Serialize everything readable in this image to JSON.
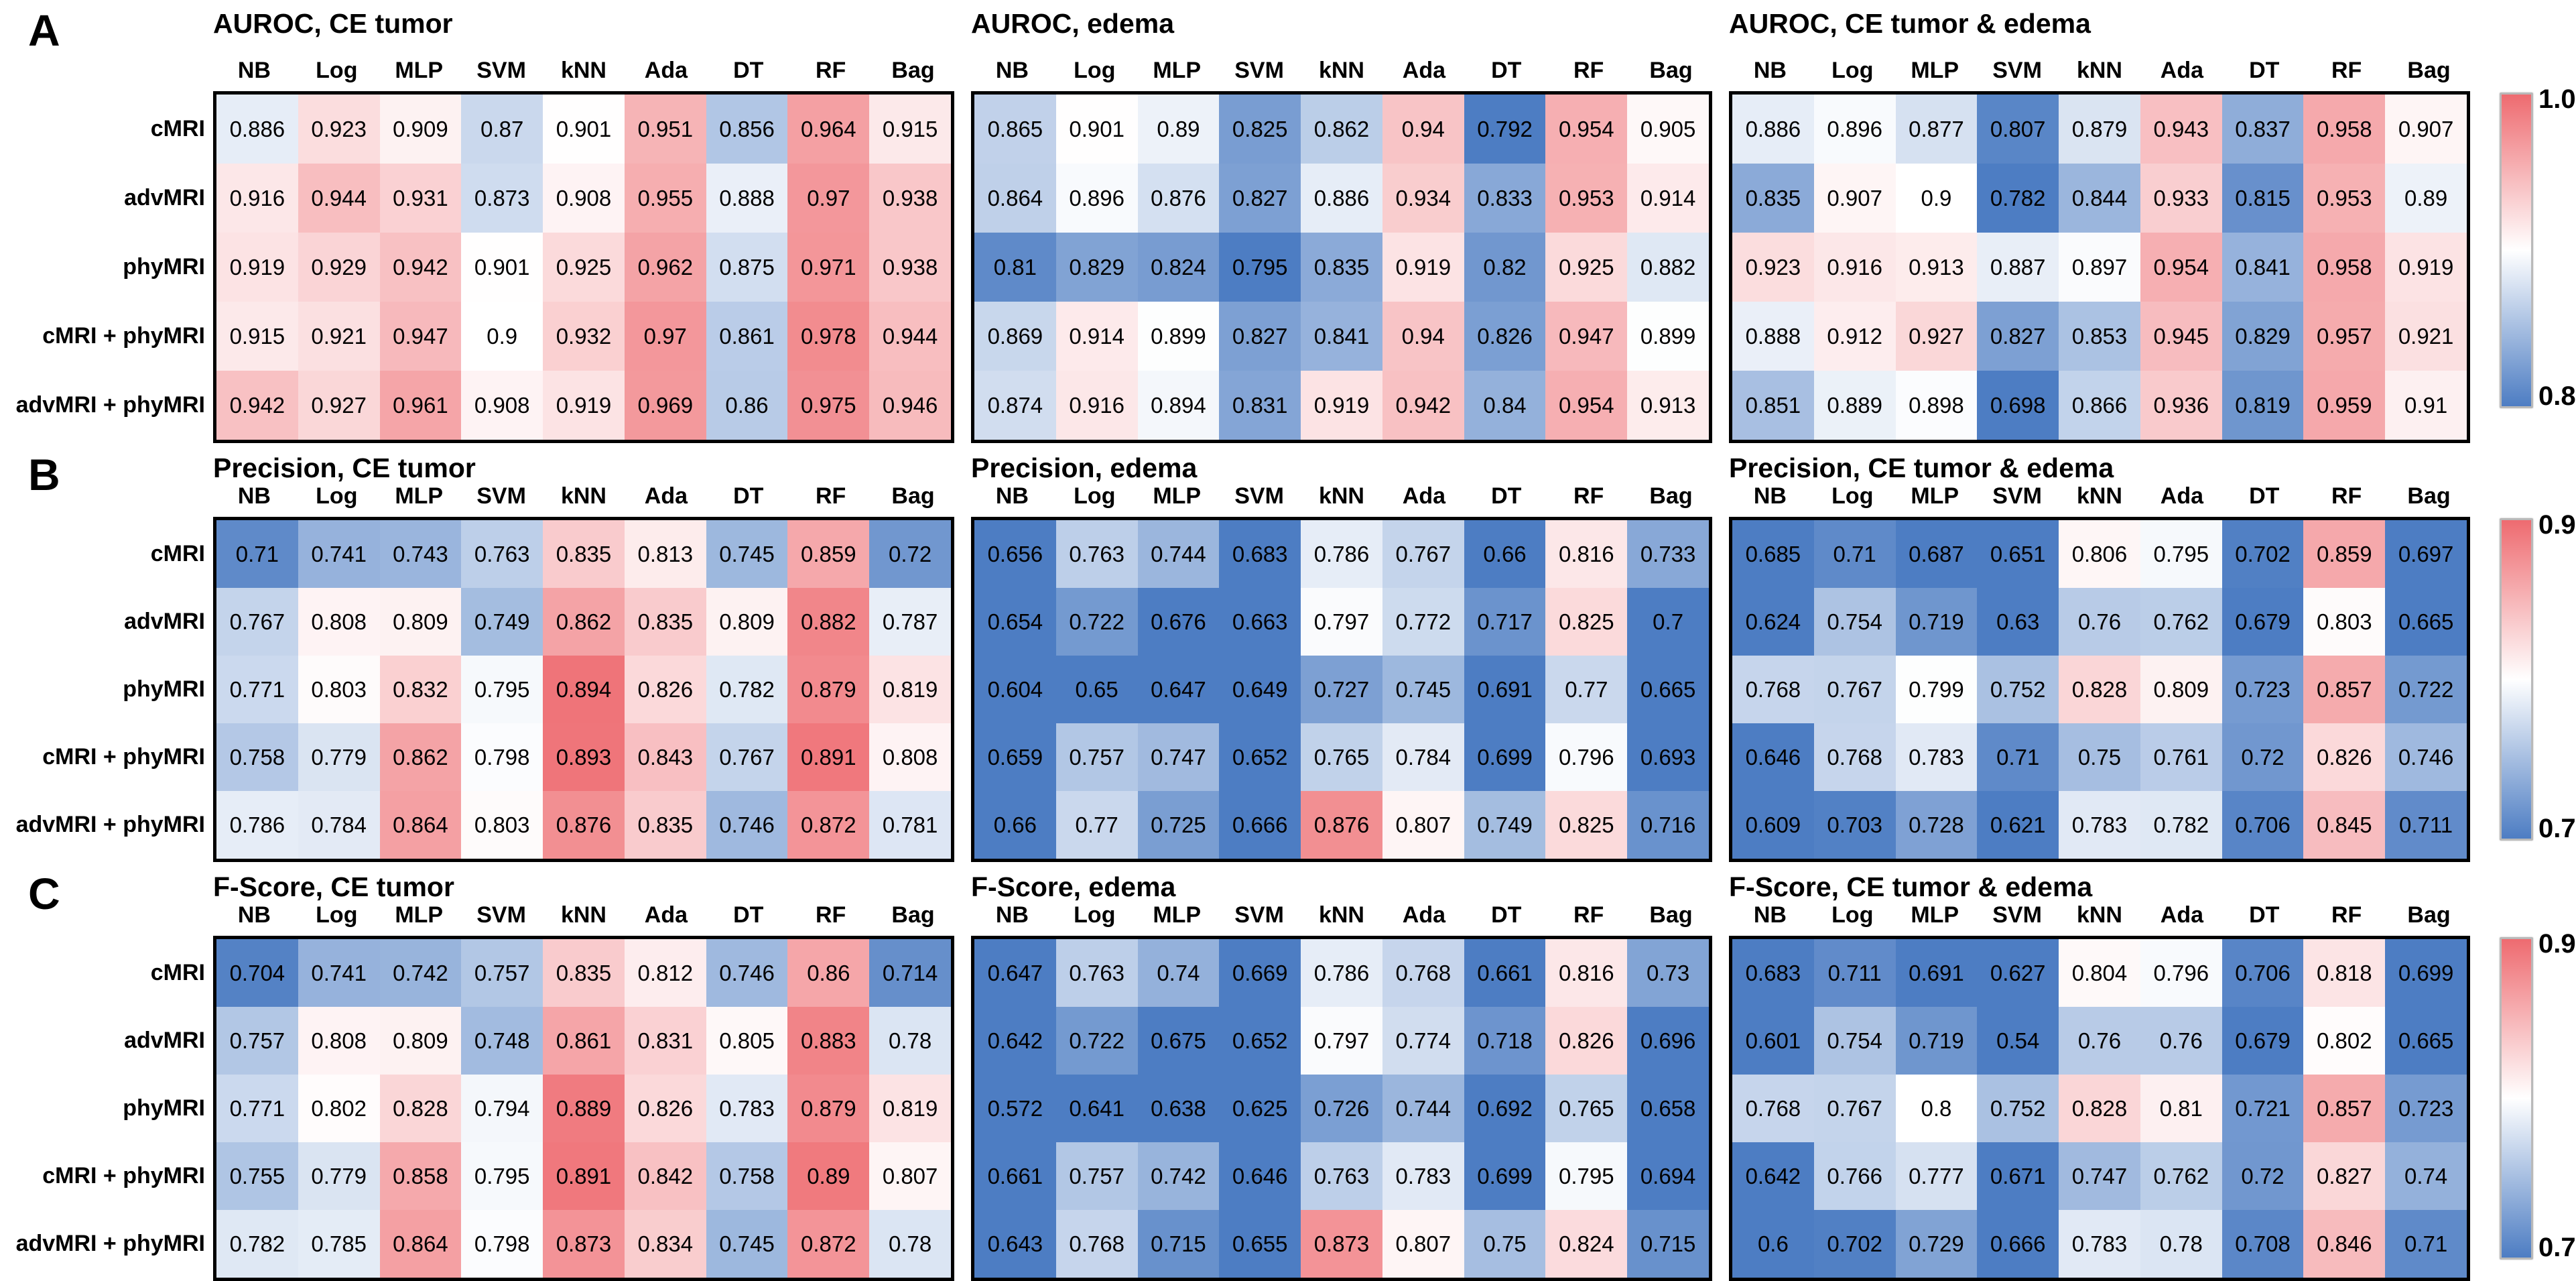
{
  "chart_data": {
    "type": "heatmap",
    "x_categories": [
      "NB",
      "Log",
      "MLP",
      "SVM",
      "kNN",
      "Ada",
      "DT",
      "RF",
      "Bag"
    ],
    "y_categories": [
      "cMRI",
      "advMRI",
      "phyMRI",
      "cMRI + phyMRI",
      "advMRI + phyMRI"
    ],
    "colormap": {
      "low": "#4d7dc3",
      "mid": "#ffffff",
      "high": "#ee6b70"
    },
    "grid": "off",
    "legend_position": "right-colorbar-per-row",
    "panel_rows": [
      {
        "letter": "A",
        "metric": "AUROC",
        "zlim": [
          0.8,
          1.0
        ],
        "colorbar_labels": {
          "top": "1.0",
          "bottom": "0.8"
        },
        "panels": [
          {
            "title": "AUROC, CE tumor",
            "values": [
              [
                0.886,
                0.923,
                0.909,
                0.87,
                0.901,
                0.951,
                0.856,
                0.964,
                0.915
              ],
              [
                0.916,
                0.944,
                0.931,
                0.873,
                0.908,
                0.955,
                0.888,
                0.97,
                0.938
              ],
              [
                0.919,
                0.929,
                0.942,
                0.901,
                0.925,
                0.962,
                0.875,
                0.971,
                0.938
              ],
              [
                0.915,
                0.921,
                0.947,
                0.9,
                0.932,
                0.97,
                0.861,
                0.978,
                0.944
              ],
              [
                0.942,
                0.927,
                0.961,
                0.908,
                0.919,
                0.969,
                0.86,
                0.975,
                0.946
              ]
            ]
          },
          {
            "title": "AUROC, edema",
            "values": [
              [
                0.865,
                0.901,
                0.89,
                0.825,
                0.862,
                0.94,
                0.792,
                0.954,
                0.905
              ],
              [
                0.864,
                0.896,
                0.876,
                0.827,
                0.886,
                0.934,
                0.833,
                0.953,
                0.914
              ],
              [
                0.81,
                0.829,
                0.824,
                0.795,
                0.835,
                0.919,
                0.82,
                0.925,
                0.882
              ],
              [
                0.869,
                0.914,
                0.899,
                0.827,
                0.841,
                0.94,
                0.826,
                0.947,
                0.899
              ],
              [
                0.874,
                0.916,
                0.894,
                0.831,
                0.919,
                0.942,
                0.84,
                0.954,
                0.913
              ]
            ]
          },
          {
            "title": "AUROC, CE tumor & edema",
            "values": [
              [
                0.886,
                0.896,
                0.877,
                0.807,
                0.879,
                0.943,
                0.837,
                0.958,
                0.907
              ],
              [
                0.835,
                0.907,
                0.9,
                0.782,
                0.844,
                0.933,
                0.815,
                0.953,
                0.89
              ],
              [
                0.923,
                0.916,
                0.913,
                0.887,
                0.897,
                0.954,
                0.841,
                0.958,
                0.919
              ],
              [
                0.888,
                0.912,
                0.927,
                0.827,
                0.853,
                0.945,
                0.829,
                0.957,
                0.921
              ],
              [
                0.851,
                0.889,
                0.898,
                0.698,
                0.866,
                0.936,
                0.819,
                0.959,
                0.91
              ]
            ]
          }
        ]
      },
      {
        "letter": "B",
        "metric": "Precision",
        "zlim": [
          0.7,
          0.9
        ],
        "colorbar_labels": {
          "top": "0.9",
          "bottom": "0.7"
        },
        "panels": [
          {
            "title": "Precision, CE tumor",
            "values": [
              [
                0.71,
                0.741,
                0.743,
                0.763,
                0.835,
                0.813,
                0.745,
                0.859,
                0.72
              ],
              [
                0.767,
                0.808,
                0.809,
                0.749,
                0.862,
                0.835,
                0.809,
                0.882,
                0.787
              ],
              [
                0.771,
                0.803,
                0.832,
                0.795,
                0.894,
                0.826,
                0.782,
                0.879,
                0.819
              ],
              [
                0.758,
                0.779,
                0.862,
                0.798,
                0.893,
                0.843,
                0.767,
                0.891,
                0.808
              ],
              [
                0.786,
                0.784,
                0.864,
                0.803,
                0.876,
                0.835,
                0.746,
                0.872,
                0.781
              ]
            ]
          },
          {
            "title": "Precision, edema",
            "values": [
              [
                0.656,
                0.763,
                0.744,
                0.683,
                0.786,
                0.767,
                0.66,
                0.816,
                0.733
              ],
              [
                0.654,
                0.722,
                0.676,
                0.663,
                0.797,
                0.772,
                0.717,
                0.825,
                0.7
              ],
              [
                0.604,
                0.65,
                0.647,
                0.649,
                0.727,
                0.745,
                0.691,
                0.77,
                0.665
              ],
              [
                0.659,
                0.757,
                0.747,
                0.652,
                0.765,
                0.784,
                0.699,
                0.796,
                0.693
              ],
              [
                0.66,
                0.77,
                0.725,
                0.666,
                0.876,
                0.807,
                0.749,
                0.825,
                0.716
              ]
            ]
          },
          {
            "title": "Precision, CE tumor & edema",
            "values": [
              [
                0.685,
                0.71,
                0.687,
                0.651,
                0.806,
                0.795,
                0.702,
                0.859,
                0.697
              ],
              [
                0.624,
                0.754,
                0.719,
                0.63,
                0.76,
                0.762,
                0.679,
                0.803,
                0.665
              ],
              [
                0.768,
                0.767,
                0.799,
                0.752,
                0.828,
                0.809,
                0.723,
                0.857,
                0.722
              ],
              [
                0.646,
                0.768,
                0.783,
                0.71,
                0.75,
                0.761,
                0.72,
                0.826,
                0.746
              ],
              [
                0.609,
                0.703,
                0.728,
                0.621,
                0.783,
                0.782,
                0.706,
                0.845,
                0.711
              ]
            ]
          }
        ]
      },
      {
        "letter": "C",
        "metric": "F-Score",
        "zlim": [
          0.7,
          0.9
        ],
        "colorbar_labels": {
          "top": "0.9",
          "bottom": "0.7"
        },
        "panels": [
          {
            "title": "F-Score, CE tumor",
            "values": [
              [
                0.704,
                0.741,
                0.742,
                0.757,
                0.835,
                0.812,
                0.746,
                0.86,
                0.714
              ],
              [
                0.757,
                0.808,
                0.809,
                0.748,
                0.861,
                0.831,
                0.805,
                0.883,
                0.78
              ],
              [
                0.771,
                0.802,
                0.828,
                0.794,
                0.889,
                0.826,
                0.783,
                0.879,
                0.819
              ],
              [
                0.755,
                0.779,
                0.858,
                0.795,
                0.891,
                0.842,
                0.758,
                0.89,
                0.807
              ],
              [
                0.782,
                0.785,
                0.864,
                0.798,
                0.873,
                0.834,
                0.745,
                0.872,
                0.78
              ]
            ]
          },
          {
            "title": "F-Score, edema",
            "values": [
              [
                0.647,
                0.763,
                0.74,
                0.669,
                0.786,
                0.768,
                0.661,
                0.816,
                0.73
              ],
              [
                0.642,
                0.722,
                0.675,
                0.652,
                0.797,
                0.774,
                0.718,
                0.826,
                0.696
              ],
              [
                0.572,
                0.641,
                0.638,
                0.625,
                0.726,
                0.744,
                0.692,
                0.765,
                0.658
              ],
              [
                0.661,
                0.757,
                0.742,
                0.646,
                0.763,
                0.783,
                0.699,
                0.795,
                0.694
              ],
              [
                0.643,
                0.768,
                0.715,
                0.655,
                0.873,
                0.807,
                0.75,
                0.824,
                0.715
              ]
            ]
          },
          {
            "title": "F-Score, CE tumor & edema",
            "values": [
              [
                0.683,
                0.711,
                0.691,
                0.627,
                0.804,
                0.796,
                0.706,
                0.818,
                0.699
              ],
              [
                0.601,
                0.754,
                0.719,
                0.54,
                0.76,
                0.76,
                0.679,
                0.802,
                0.665
              ],
              [
                0.768,
                0.767,
                0.8,
                0.752,
                0.828,
                0.81,
                0.721,
                0.857,
                0.723
              ],
              [
                0.642,
                0.766,
                0.777,
                0.671,
                0.747,
                0.762,
                0.72,
                0.827,
                0.74
              ],
              [
                0.6,
                0.702,
                0.729,
                0.666,
                0.783,
                0.78,
                0.708,
                0.846,
                0.71
              ]
            ]
          }
        ]
      }
    ]
  }
}
